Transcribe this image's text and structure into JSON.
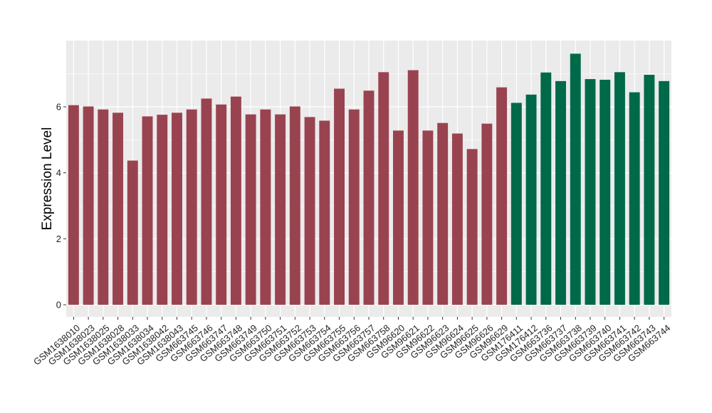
{
  "chart_data": {
    "type": "bar",
    "title": "",
    "xlabel": "",
    "ylabel": "Expression Level",
    "ylim": [
      0,
      7.9
    ],
    "yticks": [
      0,
      2,
      4,
      6
    ],
    "grid": true,
    "legend": "none",
    "colors": {
      "group1": "#9a4350",
      "group2": "#00694a",
      "panel": "#ebebeb",
      "grid": "#ffffff",
      "axis_tick": "#333333"
    },
    "categories": [
      "GSM1638010",
      "GSM1638023",
      "GSM1638025",
      "GSM1638028",
      "GSM1638033",
      "GSM1638034",
      "GSM1638042",
      "GSM1638043",
      "GSM663745",
      "GSM663746",
      "GSM663747",
      "GSM663748",
      "GSM663749",
      "GSM663750",
      "GSM663751",
      "GSM663752",
      "GSM663753",
      "GSM663754",
      "GSM663755",
      "GSM663756",
      "GSM663757",
      "GSM663758",
      "GSM96620",
      "GSM96621",
      "GSM96622",
      "GSM96623",
      "GSM96624",
      "GSM96625",
      "GSM96626",
      "GSM96629",
      "GSM176411",
      "GSM176412",
      "GSM663736",
      "GSM663737",
      "GSM663738",
      "GSM663739",
      "GSM663740",
      "GSM663741",
      "GSM663742",
      "GSM663743",
      "GSM663744"
    ],
    "values": [
      6.05,
      6.01,
      5.92,
      5.82,
      4.37,
      5.71,
      5.76,
      5.82,
      5.92,
      6.25,
      6.07,
      6.31,
      5.77,
      5.92,
      5.77,
      6.01,
      5.69,
      5.58,
      6.55,
      5.92,
      6.49,
      7.05,
      5.28,
      7.11,
      5.28,
      5.51,
      5.19,
      4.72,
      5.49,
      6.59,
      6.12,
      6.37,
      7.04,
      6.78,
      7.61,
      6.84,
      6.82,
      7.05,
      6.44,
      6.97,
      6.78
    ],
    "groups": [
      1,
      1,
      1,
      1,
      1,
      1,
      1,
      1,
      1,
      1,
      1,
      1,
      1,
      1,
      1,
      1,
      1,
      1,
      1,
      1,
      1,
      1,
      1,
      1,
      1,
      1,
      1,
      1,
      1,
      1,
      2,
      2,
      2,
      2,
      2,
      2,
      2,
      2,
      2,
      2,
      2
    ]
  }
}
